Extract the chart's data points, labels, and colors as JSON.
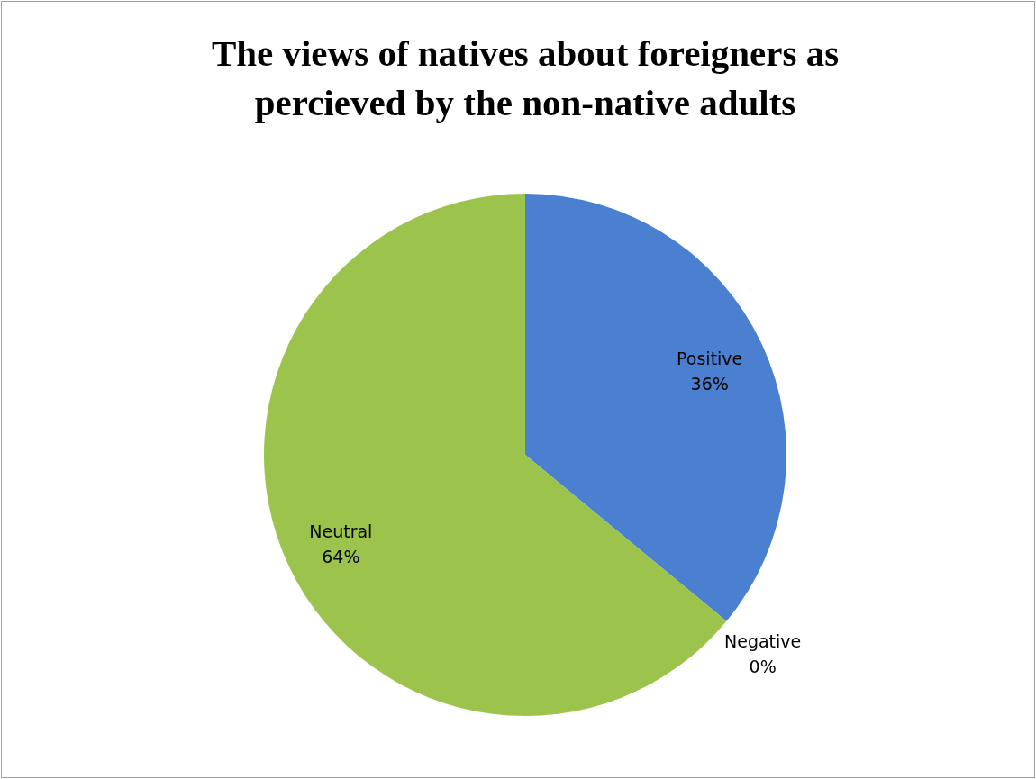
{
  "chart_data": {
    "type": "pie",
    "title": "The views of natives about foreigners as percieved by the non-native adults",
    "categories": [
      "Positive",
      "Negative",
      "Neutral"
    ],
    "values": [
      36,
      0,
      64
    ],
    "colors": [
      "#4a80cf",
      "#c0504d",
      "#9cc44c"
    ],
    "value_labels": [
      "36%",
      "0%",
      "64%"
    ]
  }
}
